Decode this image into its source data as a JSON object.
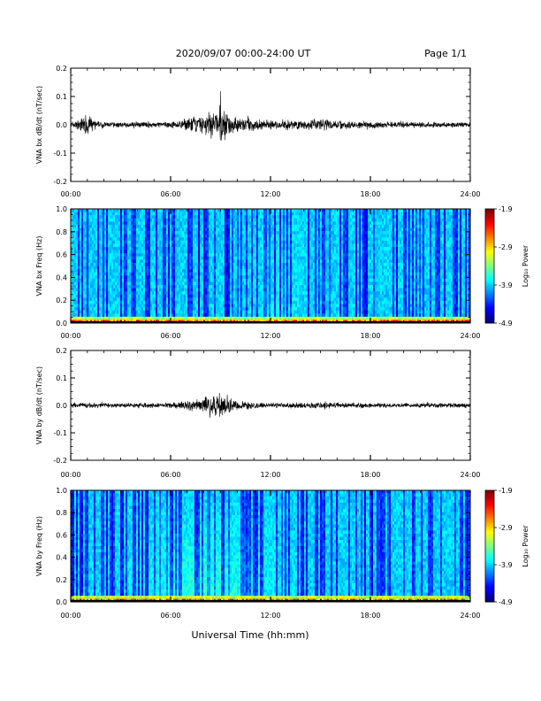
{
  "header": {
    "title": "2020/09/07  00:00-24:00 UT",
    "page": "Page 1/1"
  },
  "x_axis_title": "Universal Time (hh:mm)",
  "chart_data": [
    {
      "type": "line",
      "ylabel": "VNA bx dB/dt (nT/sec)",
      "xlim": [
        "00:00",
        "24:00"
      ],
      "xticks": [
        "00:00",
        "06:00",
        "12:00",
        "18:00",
        "24:00"
      ],
      "ylim": [
        -0.2,
        0.2
      ],
      "yticks": [
        "0.2",
        "0.1",
        "0.0",
        "-0.1",
        "-0.2"
      ],
      "series": [
        {
          "x_hours": [
            0,
            0.5,
            1.0,
            1.5,
            2,
            3,
            4,
            5,
            6,
            6.5,
            7,
            7.5,
            8,
            8.5,
            9,
            9.5,
            10,
            11,
            12,
            13,
            14,
            15,
            16,
            17,
            18,
            19,
            20,
            21,
            22,
            23,
            24
          ],
          "amplitude": [
            0.015,
            0.02,
            0.05,
            0.015,
            0.012,
            0.01,
            0.012,
            0.012,
            0.012,
            0.015,
            0.03,
            0.035,
            0.04,
            0.055,
            0.085,
            0.05,
            0.03,
            0.025,
            0.018,
            0.022,
            0.02,
            0.025,
            0.02,
            0.015,
            0.015,
            0.012,
            0.012,
            0.012,
            0.012,
            0.01,
            0.01
          ]
        }
      ]
    },
    {
      "type": "heatmap",
      "ylabel": "VNA bx Freq (Hz)",
      "xlim": [
        "00:00",
        "24:00"
      ],
      "xticks": [
        "00:00",
        "06:00",
        "12:00",
        "18:00",
        "24:00"
      ],
      "ylim": [
        0.0,
        1.0
      ],
      "yticks": [
        "1.0",
        "0.8",
        "0.6",
        "0.4",
        "0.2",
        "0.0"
      ],
      "colorbar": {
        "label": "Log₁₀ Power",
        "ticks": [
          "-1.9",
          "-2.9",
          "-3.9",
          "-4.9"
        ],
        "range": [
          -4.9,
          -1.9
        ]
      }
    },
    {
      "type": "line",
      "ylabel": "VNA by dB/dt (nT/sec)",
      "xlim": [
        "00:00",
        "24:00"
      ],
      "xticks": [
        "00:00",
        "06:00",
        "12:00",
        "18:00",
        "24:00"
      ],
      "ylim": [
        -0.2,
        0.2
      ],
      "yticks": [
        "0.2",
        "0.1",
        "0.0",
        "-0.1",
        "-0.2"
      ],
      "series": [
        {
          "x_hours": [
            0,
            1,
            2,
            3,
            4,
            5,
            6,
            6.5,
            7,
            7.5,
            8,
            8.5,
            9,
            9.5,
            10,
            11,
            12,
            13,
            14,
            15,
            16,
            17,
            18,
            19,
            20,
            21,
            22,
            23,
            24
          ],
          "amplitude": [
            0.012,
            0.012,
            0.01,
            0.01,
            0.01,
            0.01,
            0.012,
            0.015,
            0.02,
            0.025,
            0.03,
            0.04,
            0.05,
            0.035,
            0.02,
            0.015,
            0.012,
            0.012,
            0.012,
            0.012,
            0.012,
            0.012,
            0.01,
            0.01,
            0.01,
            0.01,
            0.01,
            0.01,
            0.01
          ]
        }
      ]
    },
    {
      "type": "heatmap",
      "ylabel": "VNA by Freq (Hz)",
      "xlim": [
        "00:00",
        "24:00"
      ],
      "xticks": [
        "00:00",
        "06:00",
        "12:00",
        "18:00",
        "24:00"
      ],
      "ylim": [
        0.0,
        1.0
      ],
      "yticks": [
        "1.0",
        "0.8",
        "0.6",
        "0.4",
        "0.2",
        "0.0"
      ],
      "colorbar": {
        "label": "Log₁₀ Power",
        "ticks": [
          "-1.9",
          "-2.9",
          "-3.9",
          "-4.9"
        ],
        "range": [
          -4.9,
          -1.9
        ]
      }
    }
  ]
}
